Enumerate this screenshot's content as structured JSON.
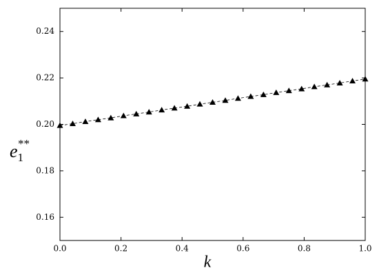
{
  "chart_data": {
    "type": "line",
    "xlabel": "k",
    "ylabel": {
      "base": "e",
      "sub": "1",
      "sup": "**"
    },
    "x": [
      0,
      0.0417,
      0.0833,
      0.125,
      0.1667,
      0.2083,
      0.25,
      0.2917,
      0.3333,
      0.375,
      0.4167,
      0.4583,
      0.5,
      0.5417,
      0.5833,
      0.625,
      0.6667,
      0.7083,
      0.75,
      0.7917,
      0.8333,
      0.875,
      0.9167,
      0.9583,
      1
    ],
    "series": [
      {
        "color": "#000000",
        "marker": "triangle",
        "values": [
          0.1995,
          0.2003,
          0.2012,
          0.202,
          0.2028,
          0.2037,
          0.2045,
          0.2053,
          0.2062,
          0.207,
          0.2078,
          0.2087,
          0.2095,
          0.2103,
          0.2112,
          0.212,
          0.2128,
          0.2137,
          0.2145,
          0.2153,
          0.2162,
          0.217,
          0.2178,
          0.2187,
          0.2195
        ]
      }
    ],
    "xlim": [
      0,
      1
    ],
    "xticks": [
      {
        "value": 0,
        "label": "0.0"
      },
      0.2,
      0.4,
      0.6,
      0.8,
      {
        "value": 1,
        "label": "1.0"
      }
    ],
    "ylim": [
      0.15,
      0.25
    ],
    "yticks": [
      0.16,
      0.18,
      {
        "value": 0.2,
        "label": "0.20"
      },
      0.22,
      0.24
    ],
    "grid": false
  }
}
